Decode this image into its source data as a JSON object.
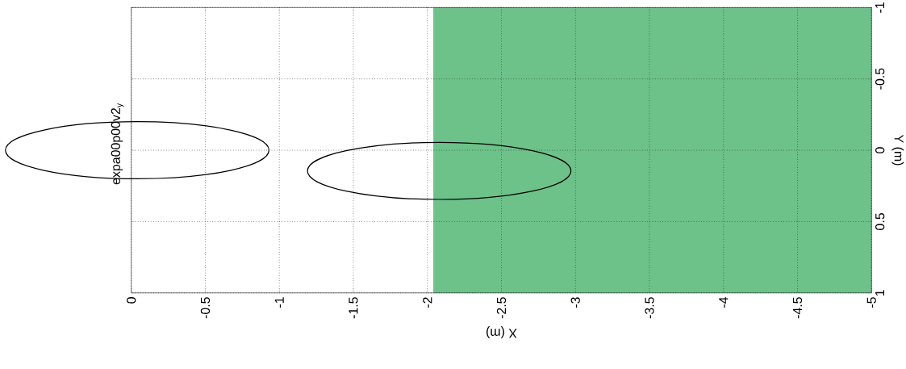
{
  "chart_data": {
    "type": "line",
    "title": "expa00p00v2$_{y}$",
    "xlabel": "X (m)",
    "ylabel": "Y (m)",
    "xlim": [
      0,
      -5
    ],
    "xticks": [
      0,
      -0.5,
      -1,
      -1.5,
      -2,
      -2.5,
      -3,
      -3.5,
      -4,
      -4.5,
      -5
    ],
    "ylim": [
      1,
      -1
    ],
    "yticks": [
      1,
      0.5,
      0,
      -0.5,
      -1
    ],
    "grid": true,
    "bands": [
      {
        "axis": "x",
        "from": -2.04,
        "to": -5,
        "color": "#6dc28a"
      }
    ]
  }
}
